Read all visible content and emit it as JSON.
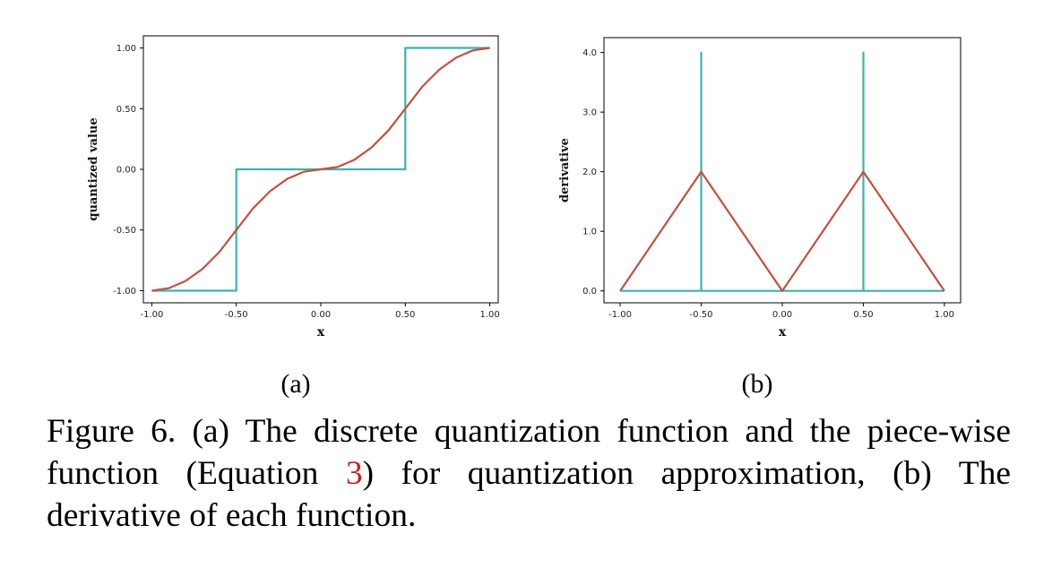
{
  "colors": {
    "step": "#3bb3b0",
    "smooth": "#c4503f",
    "ref": "#d01c1c"
  },
  "chart_data": [
    {
      "type": "line",
      "panel": "(a)",
      "xlabel": "x",
      "ylabel": "quantized value",
      "xlim": [
        -1.0,
        1.0
      ],
      "ylim": [
        -1.0,
        1.0
      ],
      "xticks": [
        "-1.00",
        "-0.50",
        "0.00",
        "0.50",
        "1.00"
      ],
      "yticks": [
        "-1.00",
        "-0.50",
        "0.00",
        "0.50",
        "1.00"
      ],
      "xtick_values": [
        -1.0,
        -0.5,
        0.0,
        0.5,
        1.0
      ],
      "ytick_values": [
        -1.0,
        -0.5,
        0.0,
        0.5,
        1.0
      ],
      "series": [
        {
          "color": "#3bb3b0",
          "x": [
            -1.0,
            -0.5,
            -0.5,
            0.5,
            0.5,
            1.0
          ],
          "y": [
            -1.0,
            -1.0,
            0.0,
            0.0,
            1.0,
            1.0
          ]
        },
        {
          "color": "#c4503f",
          "x": [
            -1.0,
            -0.9,
            -0.8,
            -0.7,
            -0.6,
            -0.5,
            -0.4,
            -0.3,
            -0.2,
            -0.1,
            0.0,
            0.1,
            0.2,
            0.3,
            0.4,
            0.5,
            0.6,
            0.7,
            0.8,
            0.9,
            1.0
          ],
          "y": [
            -1.0,
            -0.98,
            -0.92,
            -0.82,
            -0.68,
            -0.5,
            -0.32,
            -0.18,
            -0.08,
            -0.02,
            0.0,
            0.02,
            0.08,
            0.18,
            0.32,
            0.5,
            0.68,
            0.82,
            0.92,
            0.98,
            1.0
          ]
        }
      ]
    },
    {
      "type": "line",
      "panel": "(b)",
      "xlabel": "x",
      "ylabel": "derivative",
      "xlim": [
        -1.0,
        1.0
      ],
      "ylim": [
        0.0,
        4.0
      ],
      "xticks": [
        "-1.00",
        "-0.50",
        "0.00",
        "0.50",
        "1.00"
      ],
      "yticks": [
        "0.0",
        "1.0",
        "2.0",
        "3.0",
        "4.0"
      ],
      "xtick_values": [
        -1.0,
        -0.5,
        0.0,
        0.5,
        1.0
      ],
      "ytick_values": [
        0.0,
        1.0,
        2.0,
        3.0,
        4.0
      ],
      "series": [
        {
          "color": "#3bb3b0",
          "x": [
            -1.0,
            -0.5,
            -0.5,
            -0.5,
            0.5,
            0.5,
            0.5,
            1.0
          ],
          "y": [
            0.0,
            0.0,
            4.0,
            0.0,
            0.0,
            4.0,
            0.0,
            0.0
          ]
        },
        {
          "color": "#c4503f",
          "x": [
            -1.0,
            -0.5,
            0.0,
            0.5,
            1.0
          ],
          "y": [
            0.0,
            2.0,
            0.0,
            2.0,
            0.0
          ]
        }
      ]
    }
  ],
  "caption": {
    "pre": "Figure 6. (a) The discrete quantization function and the piece-wise function (Equation ",
    "ref": "3",
    "post": ") for quantization approximation, (b) The derivative of each function."
  }
}
